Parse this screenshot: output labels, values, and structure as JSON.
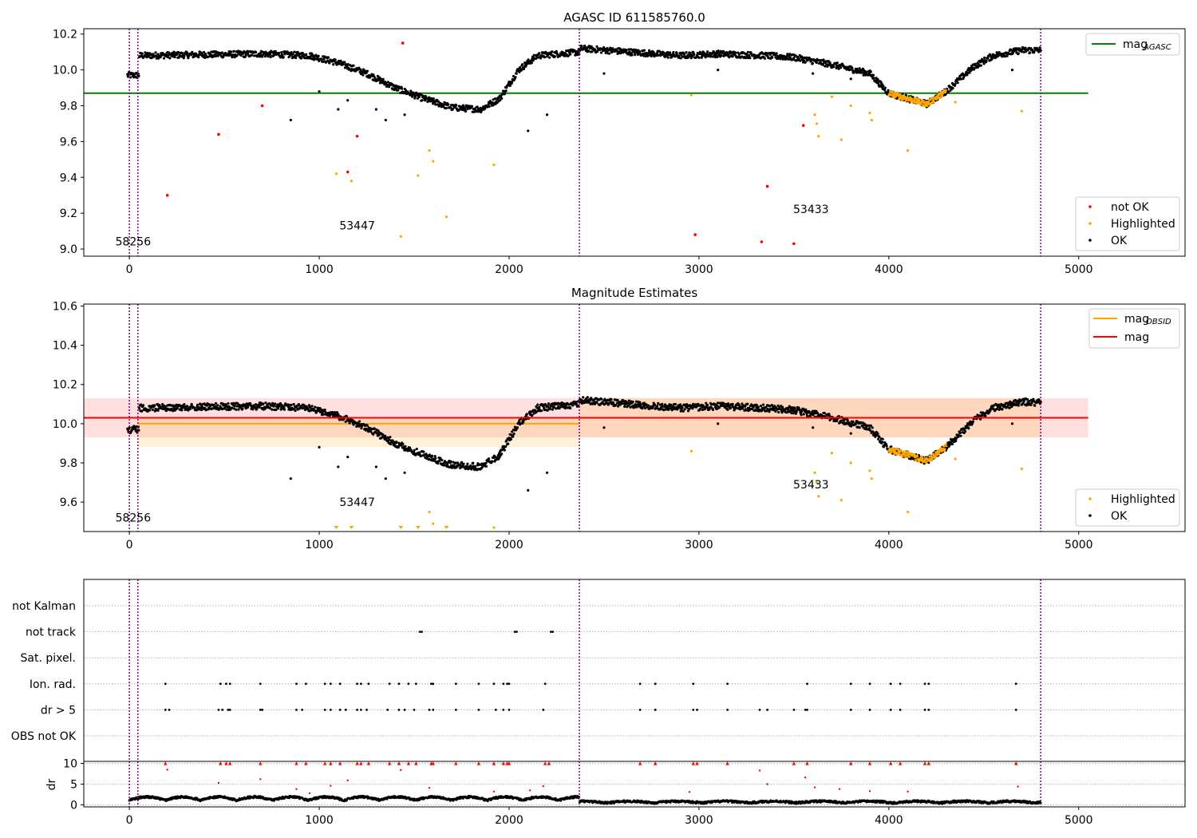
{
  "chart_data": [
    {
      "type": "scatter",
      "title": "AGASC ID 611585760.0",
      "xlim": [
        -240,
        5560
      ],
      "ylim": [
        8.96,
        10.23
      ],
      "xticks": [
        0,
        1000,
        2000,
        3000,
        4000,
        5000
      ],
      "yticks": [
        9.0,
        9.2,
        9.4,
        9.6,
        9.8,
        10.0,
        10.2
      ],
      "vlines": [
        0,
        45,
        2370,
        4800
      ],
      "hline": {
        "name": "mag_AGASC",
        "y": 9.87,
        "x": [
          -240,
          5050
        ],
        "color": "#008000"
      },
      "legend_lines": [
        {
          "label": "mag",
          "sub": "AGASC",
          "color": "#008000"
        }
      ],
      "legend_points": [
        {
          "label": "not OK",
          "color": "#ff0000"
        },
        {
          "label": "Highlighted",
          "color": "#ffa500"
        },
        {
          "label": "OK",
          "color": "#000000"
        }
      ],
      "obsid_labels": [
        {
          "text": "58256",
          "x": 20,
          "y": 9.02
        },
        {
          "text": "53447",
          "x": 1200,
          "y": 9.11
        },
        {
          "text": "53433",
          "x": 3590,
          "y": 9.2
        }
      ],
      "trend": [
        [
          -10,
          9.97
        ],
        [
          50,
          9.97
        ],
        [
          50,
          10.08
        ],
        [
          700,
          10.09
        ],
        [
          950,
          10.08
        ],
        [
          1100,
          10.04
        ],
        [
          1250,
          9.98
        ],
        [
          1400,
          9.9
        ],
        [
          1550,
          9.84
        ],
        [
          1700,
          9.79
        ],
        [
          1850,
          9.78
        ],
        [
          1950,
          9.84
        ],
        [
          2050,
          10.0
        ],
        [
          2150,
          10.08
        ],
        [
          2370,
          10.1
        ],
        [
          2380,
          10.12
        ],
        [
          2900,
          10.08
        ],
        [
          3100,
          10.09
        ],
        [
          3350,
          10.08
        ],
        [
          3500,
          10.07
        ],
        [
          3700,
          10.03
        ],
        [
          3900,
          9.98
        ],
        [
          4000,
          9.87
        ],
        [
          4100,
          9.84
        ],
        [
          4200,
          9.81
        ],
        [
          4300,
          9.88
        ],
        [
          4450,
          10.02
        ],
        [
          4550,
          10.08
        ],
        [
          4700,
          10.11
        ],
        [
          4800,
          10.11
        ]
      ],
      "scatter_ok": [
        [
          850,
          9.72
        ],
        [
          1000,
          9.88
        ],
        [
          1100,
          9.78
        ],
        [
          1150,
          9.83
        ],
        [
          1300,
          9.78
        ],
        [
          1350,
          9.72
        ],
        [
          1450,
          9.75
        ],
        [
          2100,
          9.66
        ],
        [
          2200,
          9.75
        ],
        [
          2500,
          9.98
        ],
        [
          3100,
          10.0
        ],
        [
          3600,
          9.98
        ],
        [
          3800,
          9.95
        ],
        [
          4650,
          10.0
        ]
      ],
      "not_ok": [
        [
          200,
          9.3
        ],
        [
          470,
          9.64
        ],
        [
          700,
          9.8
        ],
        [
          1150,
          9.43
        ],
        [
          1200,
          9.63
        ],
        [
          1440,
          10.15
        ],
        [
          2980,
          9.08
        ],
        [
          3330,
          9.04
        ],
        [
          3360,
          9.35
        ],
        [
          3500,
          9.03
        ],
        [
          3550,
          9.69
        ]
      ],
      "highlighted": [
        [
          1090,
          9.42
        ],
        [
          1170,
          9.38
        ],
        [
          1430,
          9.07
        ],
        [
          1520,
          9.41
        ],
        [
          1580,
          9.55
        ],
        [
          1600,
          9.49
        ],
        [
          1670,
          9.18
        ],
        [
          1920,
          9.47
        ],
        [
          2960,
          9.86
        ],
        [
          3610,
          9.75
        ],
        [
          3620,
          9.7
        ],
        [
          3630,
          9.63
        ],
        [
          3700,
          9.85
        ],
        [
          3750,
          9.61
        ],
        [
          3800,
          9.8
        ],
        [
          3900,
          9.76
        ],
        [
          3910,
          9.72
        ],
        [
          4100,
          9.55
        ],
        [
          4350,
          9.82
        ],
        [
          4700,
          9.77
        ]
      ],
      "highlight_band": [
        4000,
        4300
      ]
    },
    {
      "type": "scatter",
      "title": "Magnitude Estimates",
      "xlim": [
        -240,
        5560
      ],
      "ylim": [
        9.45,
        10.61
      ],
      "xticks": [
        0,
        1000,
        2000,
        3000,
        4000,
        5000
      ],
      "yticks": [
        9.6,
        9.8,
        10.0,
        10.2,
        10.4,
        10.6
      ],
      "vlines": [
        0,
        45,
        2370,
        4800
      ],
      "mag_line": {
        "name": "mag",
        "y": 10.03,
        "x": [
          -240,
          5050
        ],
        "band": [
          9.93,
          10.13
        ],
        "color": "#ff0000"
      },
      "obsid_segments": [
        {
          "x": [
            0,
            45
          ],
          "y": 9.975,
          "band": [
            9.95,
            10.0
          ]
        },
        {
          "x": [
            45,
            2370
          ],
          "y": 10.0,
          "band": [
            9.88,
            10.03
          ]
        },
        {
          "x": [
            2370,
            4800
          ],
          "y": 10.03,
          "band": [
            9.93,
            10.13
          ]
        }
      ],
      "legend_lines": [
        {
          "label": "mag",
          "sub": "OBSID",
          "color": "#ffa500"
        },
        {
          "label": "mag",
          "sub": "",
          "color": "#ff0000"
        }
      ],
      "legend_points": [
        {
          "label": "Highlighted",
          "color": "#ffa500"
        },
        {
          "label": "OK",
          "color": "#000000"
        }
      ],
      "obsid_labels": [
        {
          "text": "58256",
          "x": 20,
          "y": 9.5
        },
        {
          "text": "53447",
          "x": 1200,
          "y": 9.58
        },
        {
          "text": "53433",
          "x": 3590,
          "y": 9.67
        }
      ],
      "offscale_markers": [
        1090,
        1170,
        1430,
        1520,
        1670
      ]
    },
    {
      "type": "scatter",
      "title": "",
      "flag_rows": [
        "not Kalman",
        "not track",
        "Sat. pixel.",
        "Ion. rad.",
        "dr > 5",
        "OBS not OK"
      ],
      "xlim": [
        -240,
        5560
      ],
      "vlines": [
        0,
        45,
        2370,
        4800
      ],
      "flags": {
        "not track": [
          1530,
          1540,
          2030,
          2040,
          2220,
          2230
        ],
        "Ion. rad.": [
          190,
          480,
          510,
          530,
          690,
          880,
          930,
          1030,
          1060,
          1110,
          1200,
          1220,
          1260,
          1370,
          1420,
          1470,
          1510,
          1590,
          1600,
          1720,
          1840,
          1920,
          1970,
          1990,
          2000,
          2190,
          2690,
          2770,
          2970,
          3150,
          3570,
          3800,
          3900,
          4010,
          4060,
          4190,
          4210,
          4670
        ],
        "dr > 5": [
          190,
          210,
          470,
          490,
          520,
          530,
          690,
          700,
          880,
          910,
          1030,
          1060,
          1110,
          1140,
          1200,
          1220,
          1250,
          1360,
          1420,
          1450,
          1500,
          1580,
          1600,
          1720,
          1840,
          1930,
          1970,
          2000,
          2180,
          2690,
          2770,
          2970,
          2990,
          3150,
          3320,
          3360,
          3500,
          3560,
          3570,
          3800,
          3900,
          4010,
          4060,
          4190,
          4210,
          4670
        ]
      }
    },
    {
      "type": "scatter",
      "title": "",
      "ylabel": "dr",
      "xlim": [
        -240,
        5560
      ],
      "ylim": [
        -0.5,
        10.5
      ],
      "xticks": [
        0,
        1000,
        2000,
        3000,
        4000,
        5000
      ],
      "yticks": [
        0,
        5,
        10
      ],
      "vlines": [
        0,
        45,
        2370,
        4800
      ],
      "capped_red": [
        190,
        480,
        510,
        530,
        690,
        880,
        930,
        1030,
        1060,
        1110,
        1200,
        1220,
        1260,
        1370,
        1420,
        1470,
        1510,
        1590,
        1600,
        1720,
        1840,
        1920,
        1970,
        1990,
        2000,
        2190,
        2210,
        2690,
        2770,
        2970,
        2990,
        3150,
        3500,
        3570,
        3800,
        3900,
        4010,
        4060,
        4190,
        4210,
        4670
      ],
      "red_points": [
        [
          200,
          8.5
        ],
        [
          470,
          5.3
        ],
        [
          690,
          6.2
        ],
        [
          880,
          3.8
        ],
        [
          950,
          2.8
        ],
        [
          1060,
          4.6
        ],
        [
          1150,
          5.9
        ],
        [
          1430,
          8.4
        ],
        [
          1580,
          4.1
        ],
        [
          1920,
          3.2
        ],
        [
          2110,
          3.5
        ],
        [
          2180,
          4.5
        ],
        [
          2950,
          3.1
        ],
        [
          3320,
          8.3
        ],
        [
          3360,
          5.0
        ],
        [
          3560,
          6.6
        ],
        [
          3610,
          4.2
        ],
        [
          3740,
          3.8
        ],
        [
          3900,
          3.3
        ],
        [
          4100,
          3.2
        ],
        [
          4680,
          4.4
        ]
      ]
    }
  ]
}
